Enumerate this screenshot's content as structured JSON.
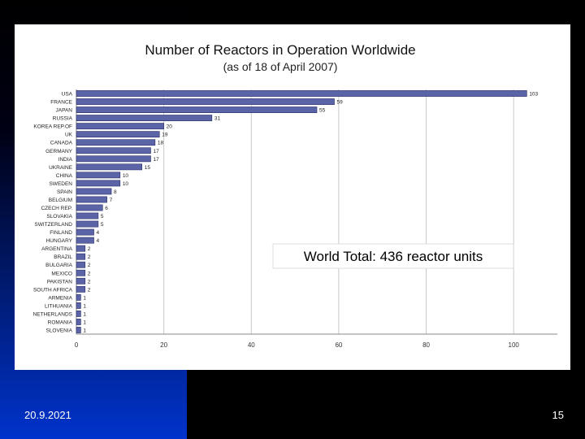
{
  "slide": {
    "date": "20.9.2021",
    "page_number": "15",
    "background": "#000000",
    "accent": "#0033cc"
  },
  "chart_data": {
    "type": "bar",
    "orientation": "horizontal",
    "title": "Number of Reactors in Operation Worldwide",
    "subtitle": "(as of 18 of April 2007)",
    "annotation": "World Total:  436 reactor units",
    "categories": [
      "USA",
      "FRANCE",
      "JAPAN",
      "RUSSIA",
      "KOREA REP.OF",
      "UK",
      "CANADA",
      "GERMANY",
      "INDIA",
      "UKRAINE",
      "CHINA",
      "SWEDEN",
      "SPAIN",
      "BELGIUM",
      "CZECH REP.",
      "SLOVAKIA",
      "SWITZERLAND",
      "FINLAND",
      "HUNGARY",
      "ARGENTINA",
      "BRAZIL",
      "BULGARIA",
      "MEXICO",
      "PAKISTAN",
      "SOUTH AFRICA",
      "ARMENIA",
      "LITHUANIA",
      "NETHERLANDS",
      "ROMANIA",
      "SLOVENIA"
    ],
    "values": [
      103,
      59,
      55,
      31,
      20,
      19,
      18,
      17,
      17,
      15,
      10,
      10,
      8,
      7,
      6,
      5,
      5,
      4,
      4,
      2,
      2,
      2,
      2,
      2,
      2,
      1,
      1,
      1,
      1,
      1
    ],
    "xlim": [
      0,
      110
    ],
    "xticks": [
      0,
      20,
      40,
      60,
      80,
      100
    ],
    "bar_color": "#5c64a8",
    "grid": true
  }
}
